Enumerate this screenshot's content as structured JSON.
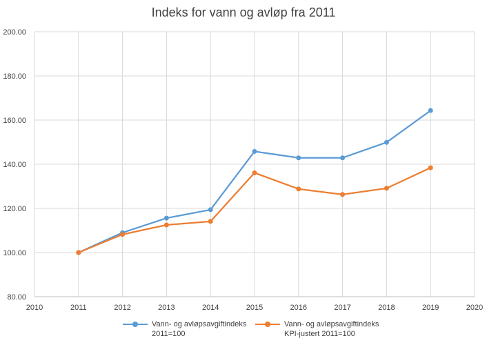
{
  "chart_data": {
    "type": "line",
    "title": "Indeks for vann og avløp fra 2011",
    "xlabel": "",
    "ylabel": "",
    "xlim": [
      2010,
      2020
    ],
    "ylim": [
      80,
      200
    ],
    "x_ticks": [
      "2010",
      "2011",
      "2012",
      "2013",
      "2014",
      "2015",
      "2016",
      "2017",
      "2018",
      "2019",
      "2020"
    ],
    "y_ticks": [
      "80.00",
      "100.00",
      "120.00",
      "140.00",
      "160.00",
      "180.00",
      "200.00"
    ],
    "grid": true,
    "legend_position": "bottom",
    "x": [
      2011,
      2012,
      2013,
      2014,
      2015,
      2016,
      2017,
      2018,
      2019
    ],
    "series": [
      {
        "name_line1": "Vann- og avløpsavgiftindeks",
        "name_line2": "2011=100",
        "color": "#5B9BD5",
        "values": [
          100.0,
          109.0,
          115.6,
          119.4,
          145.8,
          142.9,
          142.9,
          149.9,
          164.3
        ]
      },
      {
        "name_line1": "Vann- og avløpsavgiftindeks",
        "name_line2": "KPI-justert 2011=100",
        "color": "#ED7D31",
        "values": [
          100.0,
          108.2,
          112.5,
          114.1,
          136.1,
          128.8,
          126.3,
          129.1,
          138.4
        ]
      }
    ]
  }
}
